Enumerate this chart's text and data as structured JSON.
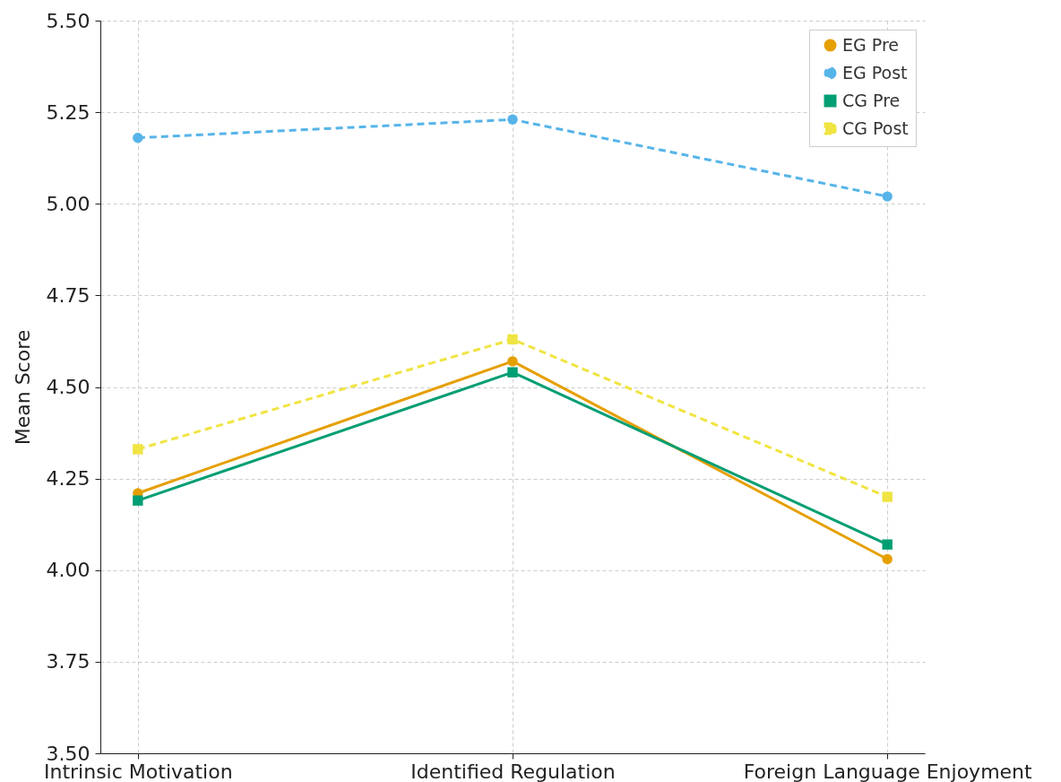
{
  "chart_data": {
    "type": "line",
    "ylabel": "Mean Score",
    "categories": [
      "Intrinsic Motivation",
      "Identified Regulation",
      "Foreign Language Enjoyment"
    ],
    "ylim": [
      3.5,
      5.5
    ],
    "yticks": [
      {
        "value": 3.5,
        "label": "3.50"
      },
      {
        "value": 3.75,
        "label": "3.75"
      },
      {
        "value": 4,
        "label": "4.00"
      },
      {
        "value": 4.25,
        "label": "4.25"
      },
      {
        "value": 4.5,
        "label": "4.50"
      },
      {
        "value": 4.75,
        "label": "4.75"
      },
      {
        "value": 5,
        "label": "5.00"
      },
      {
        "value": 5.25,
        "label": "5.25"
      },
      {
        "value": 5.5,
        "label": "5.50"
      }
    ],
    "grid": true,
    "legend": "top right",
    "series": [
      {
        "name": "EG Pre",
        "color": "#e69f00",
        "marker": "circle",
        "line_style": "solid",
        "values": [
          4.21,
          4.57,
          4.03
        ]
      },
      {
        "name": "EG Post",
        "color": "#56b4e9",
        "marker": "circle",
        "line_style": "dashed",
        "values": [
          5.18,
          5.23,
          5.02
        ]
      },
      {
        "name": "CG Pre",
        "color": "#009e73",
        "marker": "square",
        "line_style": "solid",
        "values": [
          4.19,
          4.54,
          4.07
        ]
      },
      {
        "name": "CG Post",
        "color": "#f0e442",
        "marker": "square",
        "line_style": "dashed",
        "values": [
          4.33,
          4.63,
          4.2
        ]
      }
    ]
  }
}
